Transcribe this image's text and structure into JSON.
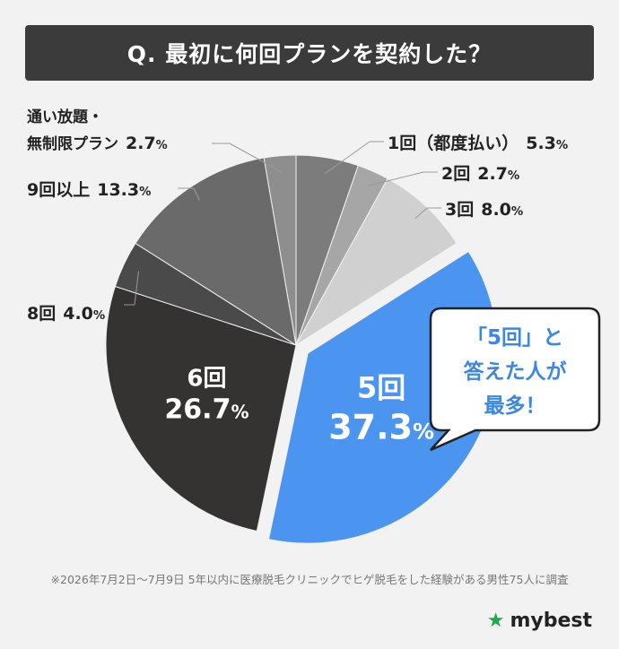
{
  "title": "Q. 最初に何回プランを契約した？",
  "chart_data": {
    "type": "pie",
    "unit": "%",
    "slices": [
      {
        "label": "1回（都度払い）",
        "value": 5.3,
        "color": "#7c7c7c"
      },
      {
        "label": "2回",
        "value": 2.7,
        "color": "#a6a6a6"
      },
      {
        "label": "3回",
        "value": 8.0,
        "color": "#d0d0d0"
      },
      {
        "label": "5回",
        "value": 37.3,
        "color": "#4b94f0"
      },
      {
        "label": "6回",
        "value": 26.7,
        "color": "#353232"
      },
      {
        "label": "8回",
        "value": 4.0,
        "color": "#4a4a4a"
      },
      {
        "label": "9回以上",
        "value": 13.3,
        "color": "#6a6a6a"
      },
      {
        "label": "通い放題・無制限プラン",
        "value": 2.7,
        "color": "#8e8e8e"
      }
    ],
    "callout": [
      "「5回」と",
      "答えた人が",
      "最多！"
    ]
  },
  "footnote": "※2026年7月2日〜7月9日 5年以内に医療脱毛クリニックでヒゲ脱毛をした経験がある男性75人に調査",
  "brand": {
    "name": "mybest",
    "accent": "#1fa84a"
  }
}
